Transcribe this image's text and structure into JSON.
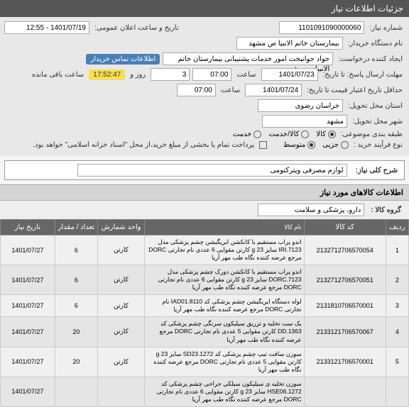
{
  "header": {
    "title": "جزئیات اطلاعات نیاز"
  },
  "form": {
    "need_no_label": "شماره نیاز:",
    "need_no": "1101091090000060",
    "announce_label": "تاریخ و ساعت اعلان عمومی:",
    "announce_val": "1401/07/19 - 12:55",
    "buyer_label": "نام دستگاه خریدار:",
    "buyer_val": "بیمارستان خاتم الانبیا  ص  مشهد",
    "creator_label": "ایجاد کننده درخواست:",
    "creator_val": "جواد جوانبخت امور خدمات پشتیبانی بیمارستان خاتم الانبیا  ص  مشهد",
    "contact_badge": "اطلاعات تماس خریدار",
    "deadline_label": "مهلت ارسال پاسخ:  تا تاریخ:",
    "deadline_date": "1401/07/23",
    "deadline_hour_label": "ساعت",
    "deadline_hour": "07:00",
    "days_val": "3",
    "days_suffix": "روز و",
    "remain_time": "17:52:47",
    "remain_suffix": "ساعت باقی مانده",
    "validity_label": "حداقل تاریخ اعتبار قیمت تا تاریخ:",
    "validity_date": "1401/07/24",
    "validity_hour": "07:00",
    "province_label": "استان محل تحویل:",
    "province": "خراسان رضوی",
    "city_label": "شهر محل تحویل:",
    "city": "مشهد",
    "category_label": "طبقه بندی موضوعی:",
    "cat_commodity": "کالا",
    "cat_service": "کالا/خدمت",
    "cat_serviceonly": "خدمت",
    "buy_type_label": "نوع فرآیند خرید :",
    "buy_small": "جزیی",
    "buy_medium": "متوسط",
    "buy_note": "پرداخت تمام یا بخشی از مبلغ خرید،از محل \"اسناد خزانه اسلامی\" خواهد بود.",
    "desc_label": "شرح کلی نیاز:",
    "desc_val": "لوازم مصرفی ویترکتومی"
  },
  "items_section": {
    "title": "اطلاعات کالاهای مورد نیاز",
    "group_label": "گروه کالا :",
    "group_val": "دارو، پزشکی و سلامت",
    "columns": {
      "idx": "ردیف",
      "code": "کد کالا",
      "name": "نام کالا",
      "unit": "واحد شمارش",
      "qty": "تعداد / مقدار",
      "date": "تاریخ نیاز"
    },
    "rows": [
      {
        "idx": "1",
        "code": "2132712706570054",
        "name": "اندو پراب مستقیم با کانکشن ایریگیشن چشم پزشکی مدل IRI.7123 سایز 23 g کارتن مقوایی 6 عددی نام تجارتی DORC مرجع عرضه کننده نگاه طب مهر آریا",
        "unit": "کارتن",
        "qty": "6",
        "date": "1401/07/27"
      },
      {
        "idx": "2",
        "code": "2132712706570051",
        "name": "اندو پراب مستقیم با کانکشن دورک چشم پزشکی مدل DORC.7123 سایز 23 g کارتن مقوایی 6 عددی نام تجارتی DORC مرجع عرضه کننده نگاه طب مهر آریا",
        "unit": "کارتن",
        "qty": "6",
        "date": "1401/07/27"
      },
      {
        "idx": "3",
        "code": "2131810706570001",
        "name": "لوله دستگاه ایریگیشن چشم پزشکی کد IAD01.8110 نام تجارتی DORC مرجع عرضه کننده نگاه طب مهر آریا",
        "unit": "کارتن",
        "qty": "6",
        "date": "1401/07/27"
      },
      {
        "idx": "4",
        "code": "2133121706570067",
        "name": "یک ست تخلیه و تزریق سیلیکون سرنگی چشم پزشکی کد DD.1363 کارتن مقوایی 5 عددی نام تجارتی DORC مرجع عرضه کننده نگاه طب مهر آریا",
        "unit": "کارتن",
        "qty": "20",
        "date": "1401/07/27"
      },
      {
        "idx": "5",
        "code": "2133121706570001",
        "name": "سوزن سافت تیپ چشم پزشکی کد SD23.1272 سایز 23 g کارتن مقوایی 5 عددی نام تجارتی DORC مرجع عرضه کننده نگاه طب مهر آریا",
        "unit": "کارتن",
        "qty": "20",
        "date": "1401/07/27"
      },
      {
        "idx": "",
        "code": "",
        "name": "سوزن تخلیه ی سیلیکون سیلکی جراحی چشم پزشکی کد HSE06.1272 سایز 23 g کارتن مقوایی 6 عددی نام تجارتی DORC مرجع عرضه کننده نگاه طب مهر آریا",
        "unit": "",
        "qty": "",
        "date": "1401/07/27"
      }
    ]
  },
  "colors": {
    "header_bg": "#555555",
    "badge_blue": "#4a7fb5",
    "badge_yellow": "#f5e050",
    "th_bg": "#666666"
  }
}
